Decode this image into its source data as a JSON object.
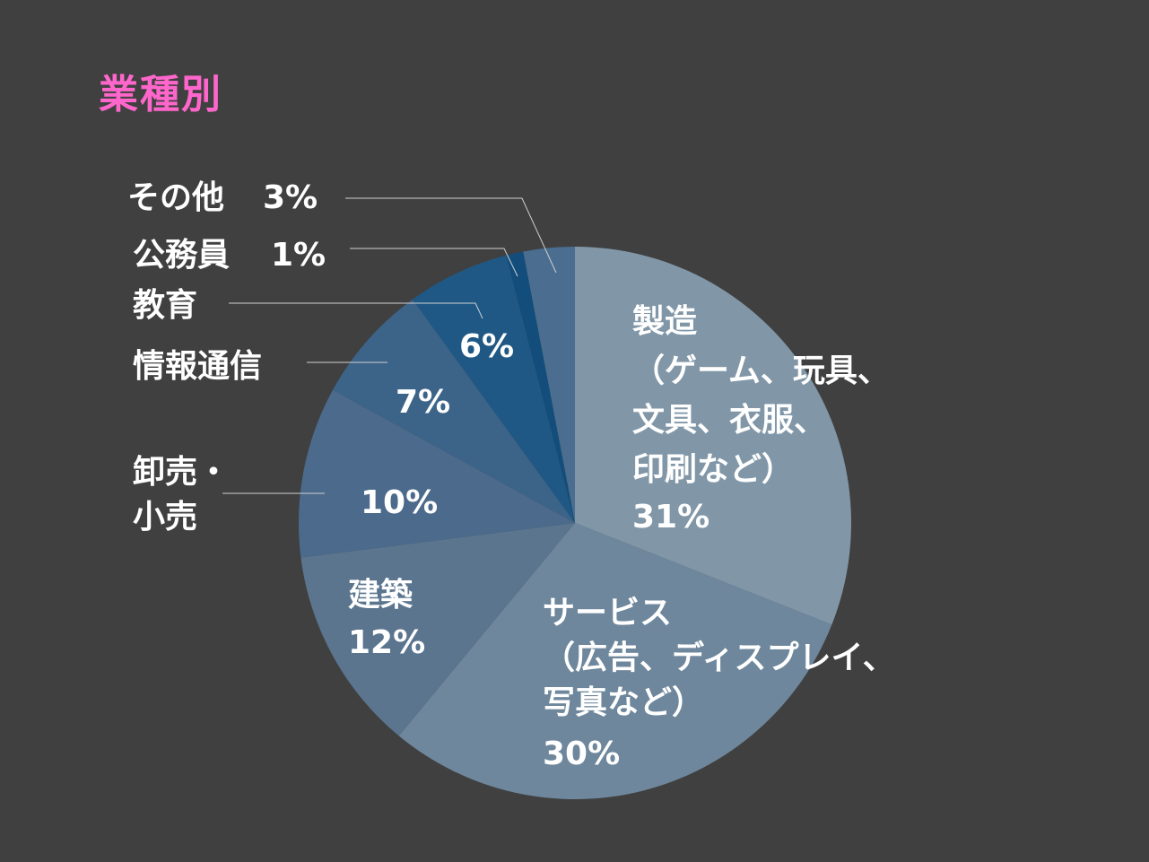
{
  "colors": {
    "background": "#404040",
    "title": "#ff66cc",
    "label": "#ffffff",
    "leader": "#cfcfcf"
  },
  "chart_data": {
    "type": "pie",
    "title": "業種別",
    "start_angle_deg": 0,
    "direction": "clockwise",
    "slices": [
      {
        "key": "manufacturing",
        "label_lines": [
          "製造",
          "（ゲーム、玩具、",
          "文具、衣服、",
          "印刷など）"
        ],
        "percent_label": "31%",
        "value": 31,
        "color": "#8197a8"
      },
      {
        "key": "services",
        "label_lines": [
          "サービス",
          "（広告、ディスプレイ、",
          "写真など）"
        ],
        "percent_label": "30%",
        "value": 30,
        "color": "#6e879c"
      },
      {
        "key": "construction",
        "label_lines": [
          "建築"
        ],
        "percent_label": "12%",
        "value": 12,
        "color": "#5b758f"
      },
      {
        "key": "wholesale-retail",
        "label_lines": [
          "卸売・",
          "小売"
        ],
        "percent_label": "10%",
        "value": 10,
        "color": "#4c6a8b"
      },
      {
        "key": "it-telecom",
        "label_lines": [
          "情報通信"
        ],
        "percent_label": "7%",
        "value": 7,
        "color": "#3c6489"
      },
      {
        "key": "education",
        "label_lines": [
          "教育"
        ],
        "percent_label": "6%",
        "value": 6,
        "color": "#1f5885"
      },
      {
        "key": "civil-servant",
        "label_lines": [
          "公務員"
        ],
        "percent_label": "1%",
        "value": 1,
        "color": "#124d7b"
      },
      {
        "key": "other",
        "label_lines": [
          "その他"
        ],
        "percent_label": "3%",
        "value": 3,
        "color": "#4b6d8f"
      }
    ]
  }
}
